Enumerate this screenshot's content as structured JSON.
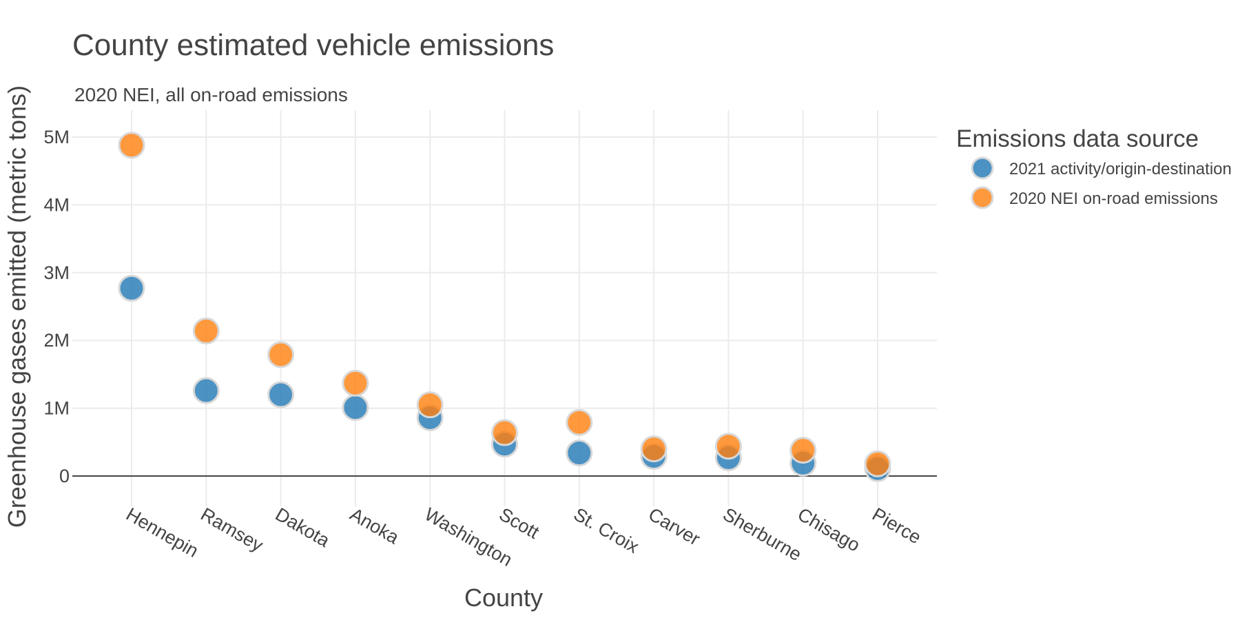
{
  "chart_data": {
    "type": "scatter",
    "title": "County estimated vehicle emissions",
    "subtitle": "2020 NEI, all on-road emissions",
    "xlabel": "County",
    "ylabel": "Greenhouse gases emitted (metric tons)",
    "categories": [
      "Hennepin",
      "Ramsey",
      "Dakota",
      "Anoka",
      "Washington",
      "Scott",
      "St. Croix",
      "Carver",
      "Sherburne",
      "Chisago",
      "Pierce"
    ],
    "ylim": [
      -350000,
      5400000
    ],
    "yticks": [
      0,
      1000000,
      2000000,
      3000000,
      4000000,
      5000000
    ],
    "ytick_labels": [
      "0",
      "1M",
      "2M",
      "3M",
      "4M",
      "5M"
    ],
    "grid": true,
    "legend": {
      "title": "Emissions data source",
      "position": "right"
    },
    "series": [
      {
        "name": "2021 activity/origin-destination",
        "color": "#1f77b4",
        "values": [
          2770000,
          1260000,
          1200000,
          1010000,
          860000,
          470000,
          340000,
          290000,
          270000,
          190000,
          110000
        ]
      },
      {
        "name": "2020 NEI on-road emissions",
        "color": "#ff7f0e",
        "values": [
          4880000,
          2140000,
          1790000,
          1370000,
          1050000,
          640000,
          790000,
          400000,
          440000,
          380000,
          180000
        ]
      }
    ]
  }
}
